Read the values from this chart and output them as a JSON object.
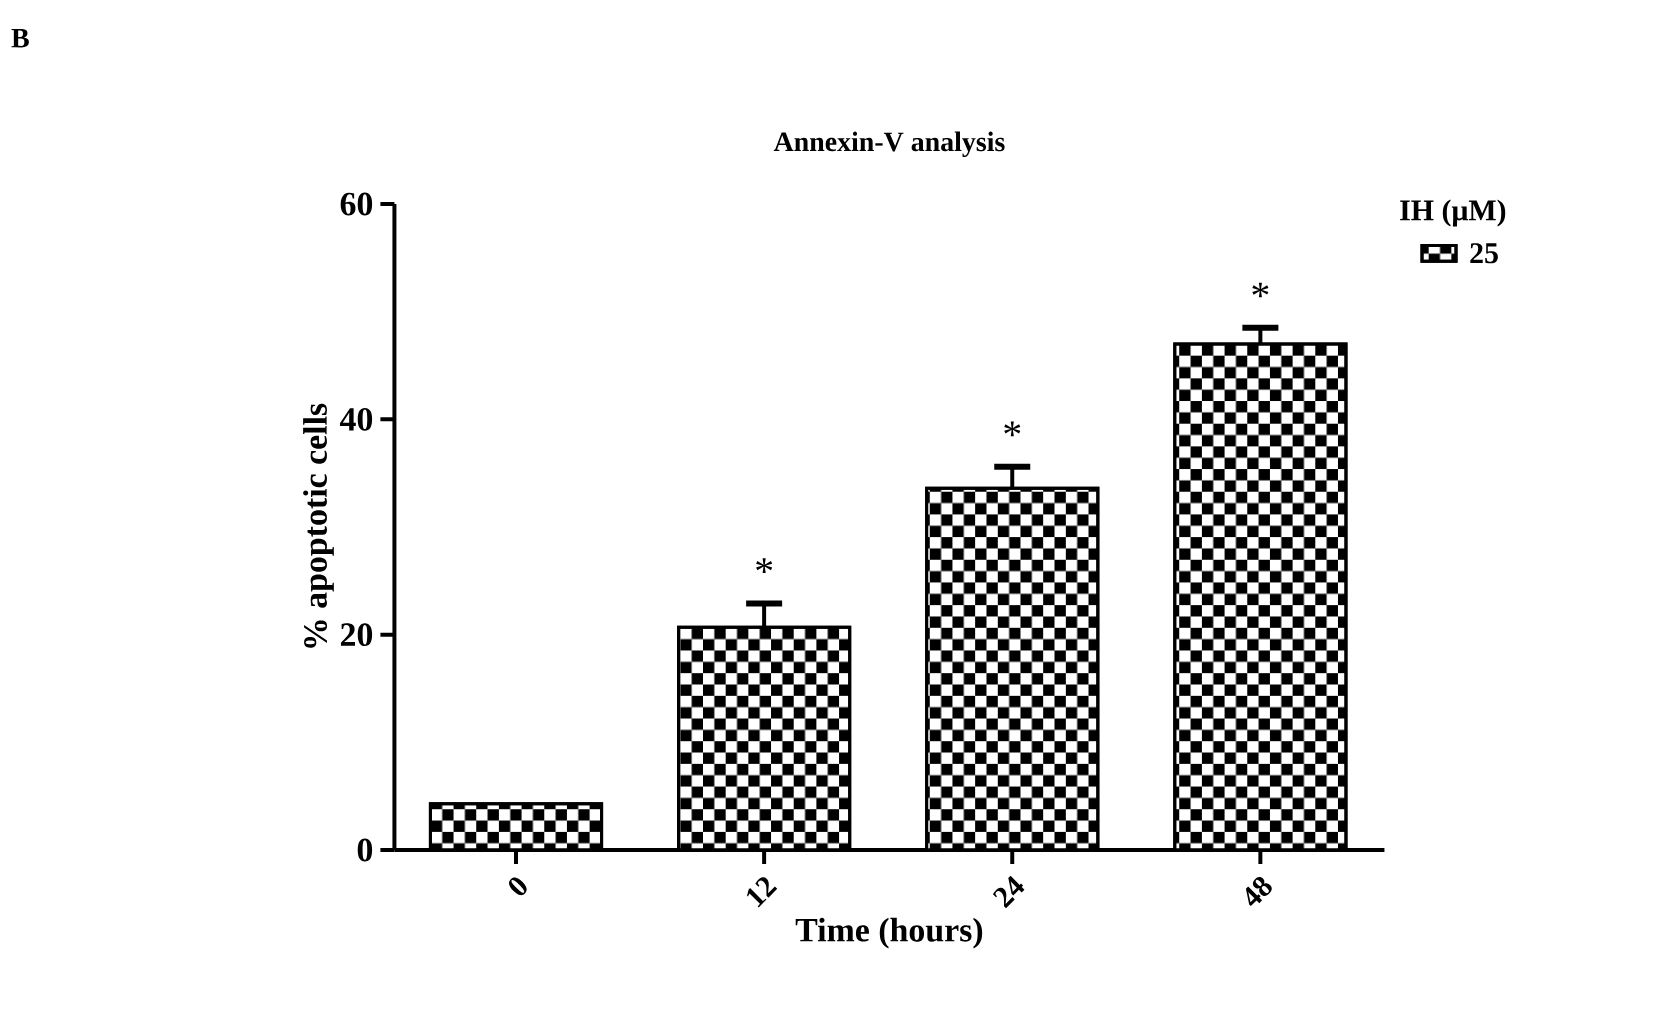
{
  "chart_data": {
    "type": "bar",
    "title": "Annexin-V analysis",
    "xlabel": "Time (hours)",
    "ylabel": "% apoptotic cells",
    "legend_title": "IH (μM)",
    "categories": [
      "0",
      "12",
      "24",
      "48"
    ],
    "series": [
      {
        "name": "25",
        "color": "#000000",
        "values": [
          4.3,
          20.7,
          33.6,
          47.0
        ],
        "errors": [
          null,
          [
            20.7,
            22.9
          ],
          [
            33.6,
            35.6
          ],
          [
            47.0,
            48.5
          ]
        ]
      }
    ],
    "ylim": [
      0,
      60
    ],
    "yticks": [
      0,
      20,
      40,
      60
    ],
    "legend": "top right",
    "annotations": [
      "B",
      "*",
      "*",
      "*"
    ]
  }
}
